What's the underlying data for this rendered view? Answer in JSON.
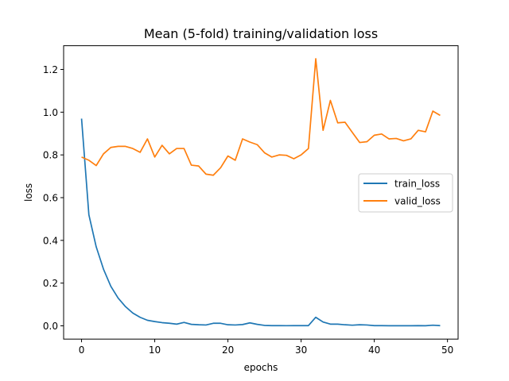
{
  "chart_data": {
    "type": "line",
    "title": "Mean (5-fold) training/validation loss",
    "xlabel": "epochs",
    "ylabel": "loss",
    "xlim": [
      -2.45,
      51.45
    ],
    "ylim": [
      -0.062,
      1.311
    ],
    "xticks": [
      0,
      10,
      20,
      30,
      40,
      50
    ],
    "yticks": [
      0.0,
      0.2,
      0.4,
      0.6,
      0.8,
      1.0,
      1.2
    ],
    "ytick_labels": [
      "0.0",
      "0.2",
      "0.4",
      "0.6",
      "0.8",
      "1.0",
      "1.2"
    ],
    "grid": false,
    "legend_position": "center right",
    "x": [
      0,
      1,
      2,
      3,
      4,
      5,
      6,
      7,
      8,
      9,
      10,
      11,
      12,
      13,
      14,
      15,
      16,
      17,
      18,
      19,
      20,
      21,
      22,
      23,
      24,
      25,
      26,
      27,
      28,
      29,
      30,
      31,
      32,
      33,
      34,
      35,
      36,
      37,
      38,
      39,
      40,
      41,
      42,
      43,
      44,
      45,
      46,
      47,
      48,
      49
    ],
    "series": [
      {
        "name": "train_loss",
        "color": "#1f77b4",
        "values": [
          0.97,
          0.52,
          0.37,
          0.265,
          0.185,
          0.13,
          0.09,
          0.06,
          0.04,
          0.026,
          0.02,
          0.015,
          0.012,
          0.008,
          0.016,
          0.007,
          0.005,
          0.004,
          0.012,
          0.012,
          0.005,
          0.004,
          0.006,
          0.014,
          0.007,
          0.002,
          0.001,
          0.001,
          0.0008,
          0.001,
          0.001,
          0.001,
          0.04,
          0.018,
          0.008,
          0.008,
          0.005,
          0.003,
          0.005,
          0.004,
          0.001,
          0.001,
          0.0005,
          0.0005,
          0.0005,
          0.0005,
          0.001,
          0.0005,
          0.003,
          0.001
        ]
      },
      {
        "name": "valid_loss",
        "color": "#ff7f0e",
        "values": [
          0.79,
          0.775,
          0.75,
          0.805,
          0.835,
          0.84,
          0.84,
          0.83,
          0.812,
          0.875,
          0.79,
          0.845,
          0.805,
          0.83,
          0.83,
          0.752,
          0.748,
          0.71,
          0.705,
          0.74,
          0.795,
          0.775,
          0.875,
          0.86,
          0.848,
          0.81,
          0.79,
          0.8,
          0.798,
          0.782,
          0.8,
          0.83,
          1.25,
          0.915,
          1.055,
          0.95,
          0.953,
          0.905,
          0.858,
          0.862,
          0.892,
          0.898,
          0.875,
          0.877,
          0.866,
          0.875,
          0.915,
          0.908,
          1.005,
          0.985
        ]
      }
    ]
  }
}
